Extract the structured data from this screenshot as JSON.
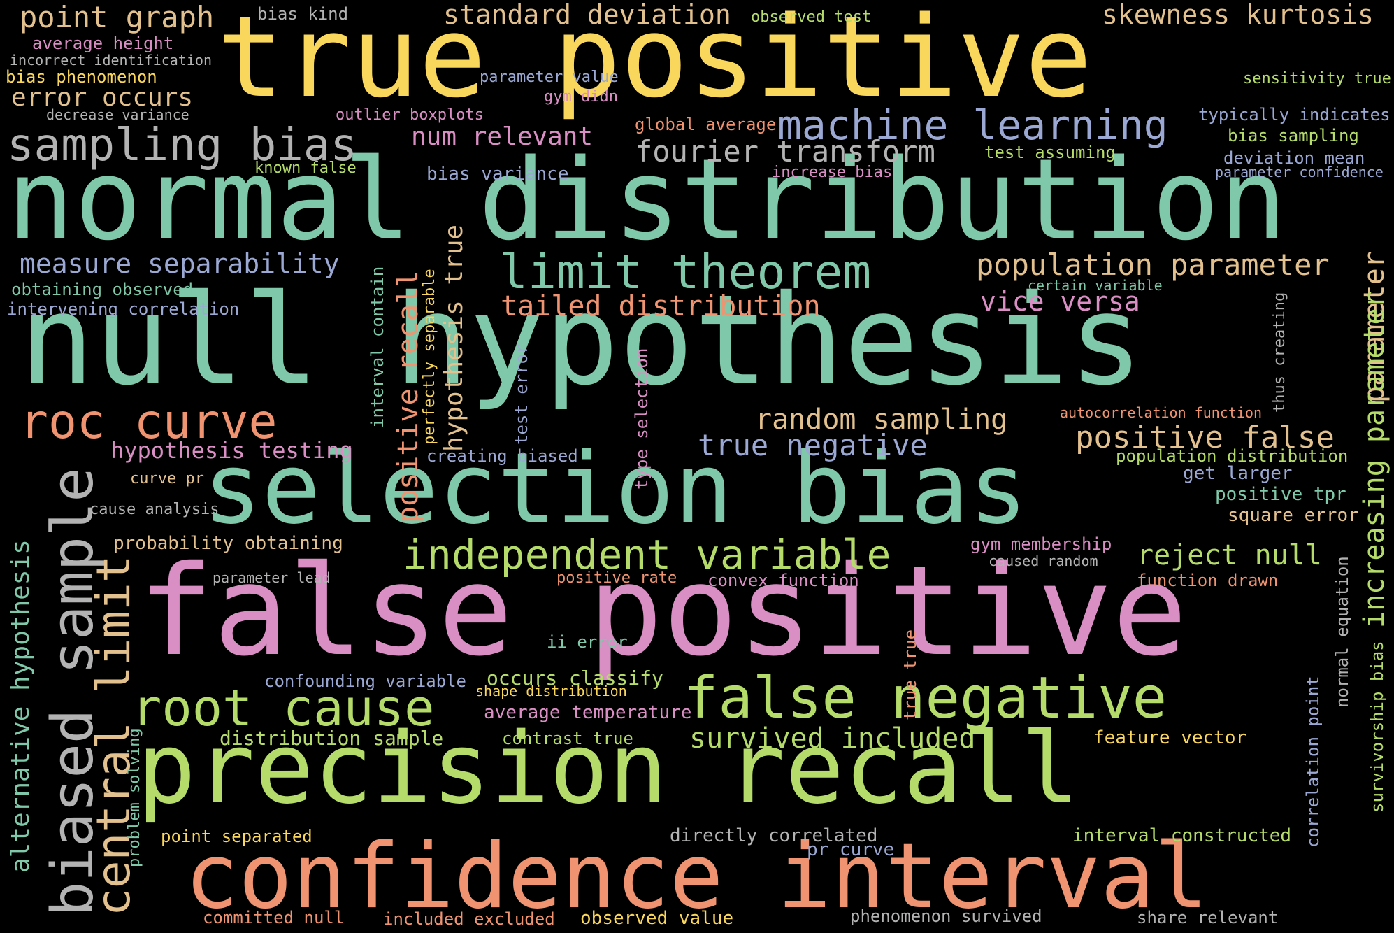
{
  "palette": {
    "background": "#000000",
    "teal": "#7fc8a9",
    "pink": "#d98ec4",
    "lime": "#b5dc6a",
    "yellow": "#f9d65c",
    "orange": "#ef9370",
    "blue": "#9aa8d3",
    "tan": "#e3c18f",
    "gray": "#b3b3b3"
  },
  "words": [
    {
      "text": "true positive",
      "color": "yellow"
    },
    {
      "text": "normal distribution",
      "color": "teal"
    },
    {
      "text": "null hypothesis",
      "color": "teal"
    },
    {
      "text": "selection bias",
      "color": "teal"
    },
    {
      "text": "false positive",
      "color": "pink"
    },
    {
      "text": "precision recall",
      "color": "lime"
    },
    {
      "text": "confidence interval",
      "color": "orange"
    },
    {
      "text": "point graph",
      "color": "tan"
    },
    {
      "text": "bias kind",
      "color": "gray"
    },
    {
      "text": "standard deviation",
      "color": "tan"
    },
    {
      "text": "observed test",
      "color": "lime"
    },
    {
      "text": "skewness kurtosis",
      "color": "tan"
    },
    {
      "text": "average height",
      "color": "pink"
    },
    {
      "text": "incorrect identification",
      "color": "gray"
    },
    {
      "text": "bias phenomenon",
      "color": "yellow"
    },
    {
      "text": "error occurs",
      "color": "tan"
    },
    {
      "text": "decrease variance",
      "color": "gray"
    },
    {
      "text": "parameter value",
      "color": "blue"
    },
    {
      "text": "gym didn",
      "color": "pink"
    },
    {
      "text": "sensitivity true",
      "color": "lime"
    },
    {
      "text": "outlier boxplots",
      "color": "pink"
    },
    {
      "text": "global average",
      "color": "orange"
    },
    {
      "text": "machine learning",
      "color": "blue"
    },
    {
      "text": "typically indicates",
      "color": "blue"
    },
    {
      "text": "sampling bias",
      "color": "gray"
    },
    {
      "text": "num relevant",
      "color": "pink"
    },
    {
      "text": "fourier transform",
      "color": "gray"
    },
    {
      "text": "bias sampling",
      "color": "lime"
    },
    {
      "text": "test assuming",
      "color": "lime"
    },
    {
      "text": "deviation mean",
      "color": "blue"
    },
    {
      "text": "known false",
      "color": "lime"
    },
    {
      "text": "bias variance",
      "color": "blue"
    },
    {
      "text": "increase bias",
      "color": "pink"
    },
    {
      "text": "parameter confidence",
      "color": "blue"
    },
    {
      "text": "measure separability",
      "color": "blue"
    },
    {
      "text": "limit theorem",
      "color": "teal"
    },
    {
      "text": "population parameter",
      "color": "tan"
    },
    {
      "text": "obtaining observed",
      "color": "teal"
    },
    {
      "text": "certain variable",
      "color": "teal"
    },
    {
      "text": "intervening correlation",
      "color": "blue"
    },
    {
      "text": "tailed distribution",
      "color": "orange"
    },
    {
      "text": "vice versa",
      "color": "pink"
    },
    {
      "text": "roc curve",
      "color": "orange"
    },
    {
      "text": "random sampling",
      "color": "tan"
    },
    {
      "text": "autocorrelation function",
      "color": "orange"
    },
    {
      "text": "positive false",
      "color": "tan"
    },
    {
      "text": "hypothesis testing",
      "color": "pink"
    },
    {
      "text": "true negative",
      "color": "blue"
    },
    {
      "text": "creating biased",
      "color": "blue"
    },
    {
      "text": "population distribution",
      "color": "lime"
    },
    {
      "text": "get larger",
      "color": "blue"
    },
    {
      "text": "curve pr",
      "color": "tan"
    },
    {
      "text": "positive tpr",
      "color": "teal"
    },
    {
      "text": "cause analysis",
      "color": "gray"
    },
    {
      "text": "square error",
      "color": "tan"
    },
    {
      "text": "probability obtaining",
      "color": "tan"
    },
    {
      "text": "independent variable",
      "color": "lime"
    },
    {
      "text": "gym membership",
      "color": "pink"
    },
    {
      "text": "reject null",
      "color": "lime"
    },
    {
      "text": "caused random",
      "color": "gray"
    },
    {
      "text": "parameter lead",
      "color": "gray"
    },
    {
      "text": "positive rate",
      "color": "orange"
    },
    {
      "text": "convex function",
      "color": "pink"
    },
    {
      "text": "function drawn",
      "color": "orange"
    },
    {
      "text": "ii error",
      "color": "teal"
    },
    {
      "text": "confounding variable",
      "color": "blue"
    },
    {
      "text": "occurs classify",
      "color": "lime"
    },
    {
      "text": "shape distribution",
      "color": "yellow"
    },
    {
      "text": "false negative",
      "color": "lime"
    },
    {
      "text": "root cause",
      "color": "lime"
    },
    {
      "text": "average temperature",
      "color": "pink"
    },
    {
      "text": "distribution sample",
      "color": "lime"
    },
    {
      "text": "contrast true",
      "color": "lime"
    },
    {
      "text": "survived included",
      "color": "lime"
    },
    {
      "text": "feature vector",
      "color": "yellow"
    },
    {
      "text": "point separated",
      "color": "yellow"
    },
    {
      "text": "directly correlated",
      "color": "gray"
    },
    {
      "text": "interval constructed",
      "color": "lime"
    },
    {
      "text": "pr curve",
      "color": "blue"
    },
    {
      "text": "committed null",
      "color": "orange"
    },
    {
      "text": "included excluded",
      "color": "orange"
    },
    {
      "text": "observed value",
      "color": "yellow"
    },
    {
      "text": "phenomenon survived",
      "color": "gray"
    },
    {
      "text": "share relevant",
      "color": "gray"
    },
    {
      "text": "biased sample",
      "color": "gray"
    },
    {
      "text": "central limit",
      "color": "tan"
    },
    {
      "text": "alternative hypothesis",
      "color": "teal"
    },
    {
      "text": "problem solving",
      "color": "teal"
    },
    {
      "text": "interval contain",
      "color": "teal"
    },
    {
      "text": "positive recall",
      "color": "orange"
    },
    {
      "text": "perfectly separable",
      "color": "yellow"
    },
    {
      "text": "hypothesis true",
      "color": "tan"
    },
    {
      "text": "test error",
      "color": "blue"
    },
    {
      "text": "type selection",
      "color": "pink"
    },
    {
      "text": "true true",
      "color": "orange"
    },
    {
      "text": "thus creating",
      "color": "gray"
    },
    {
      "text": "parameter",
      "color": "tan"
    },
    {
      "text": "increasing parameter",
      "color": "lime"
    },
    {
      "text": "survivorship bias",
      "color": "lime"
    },
    {
      "text": "normal equation",
      "color": "gray"
    },
    {
      "text": "correlation point",
      "color": "blue"
    }
  ]
}
